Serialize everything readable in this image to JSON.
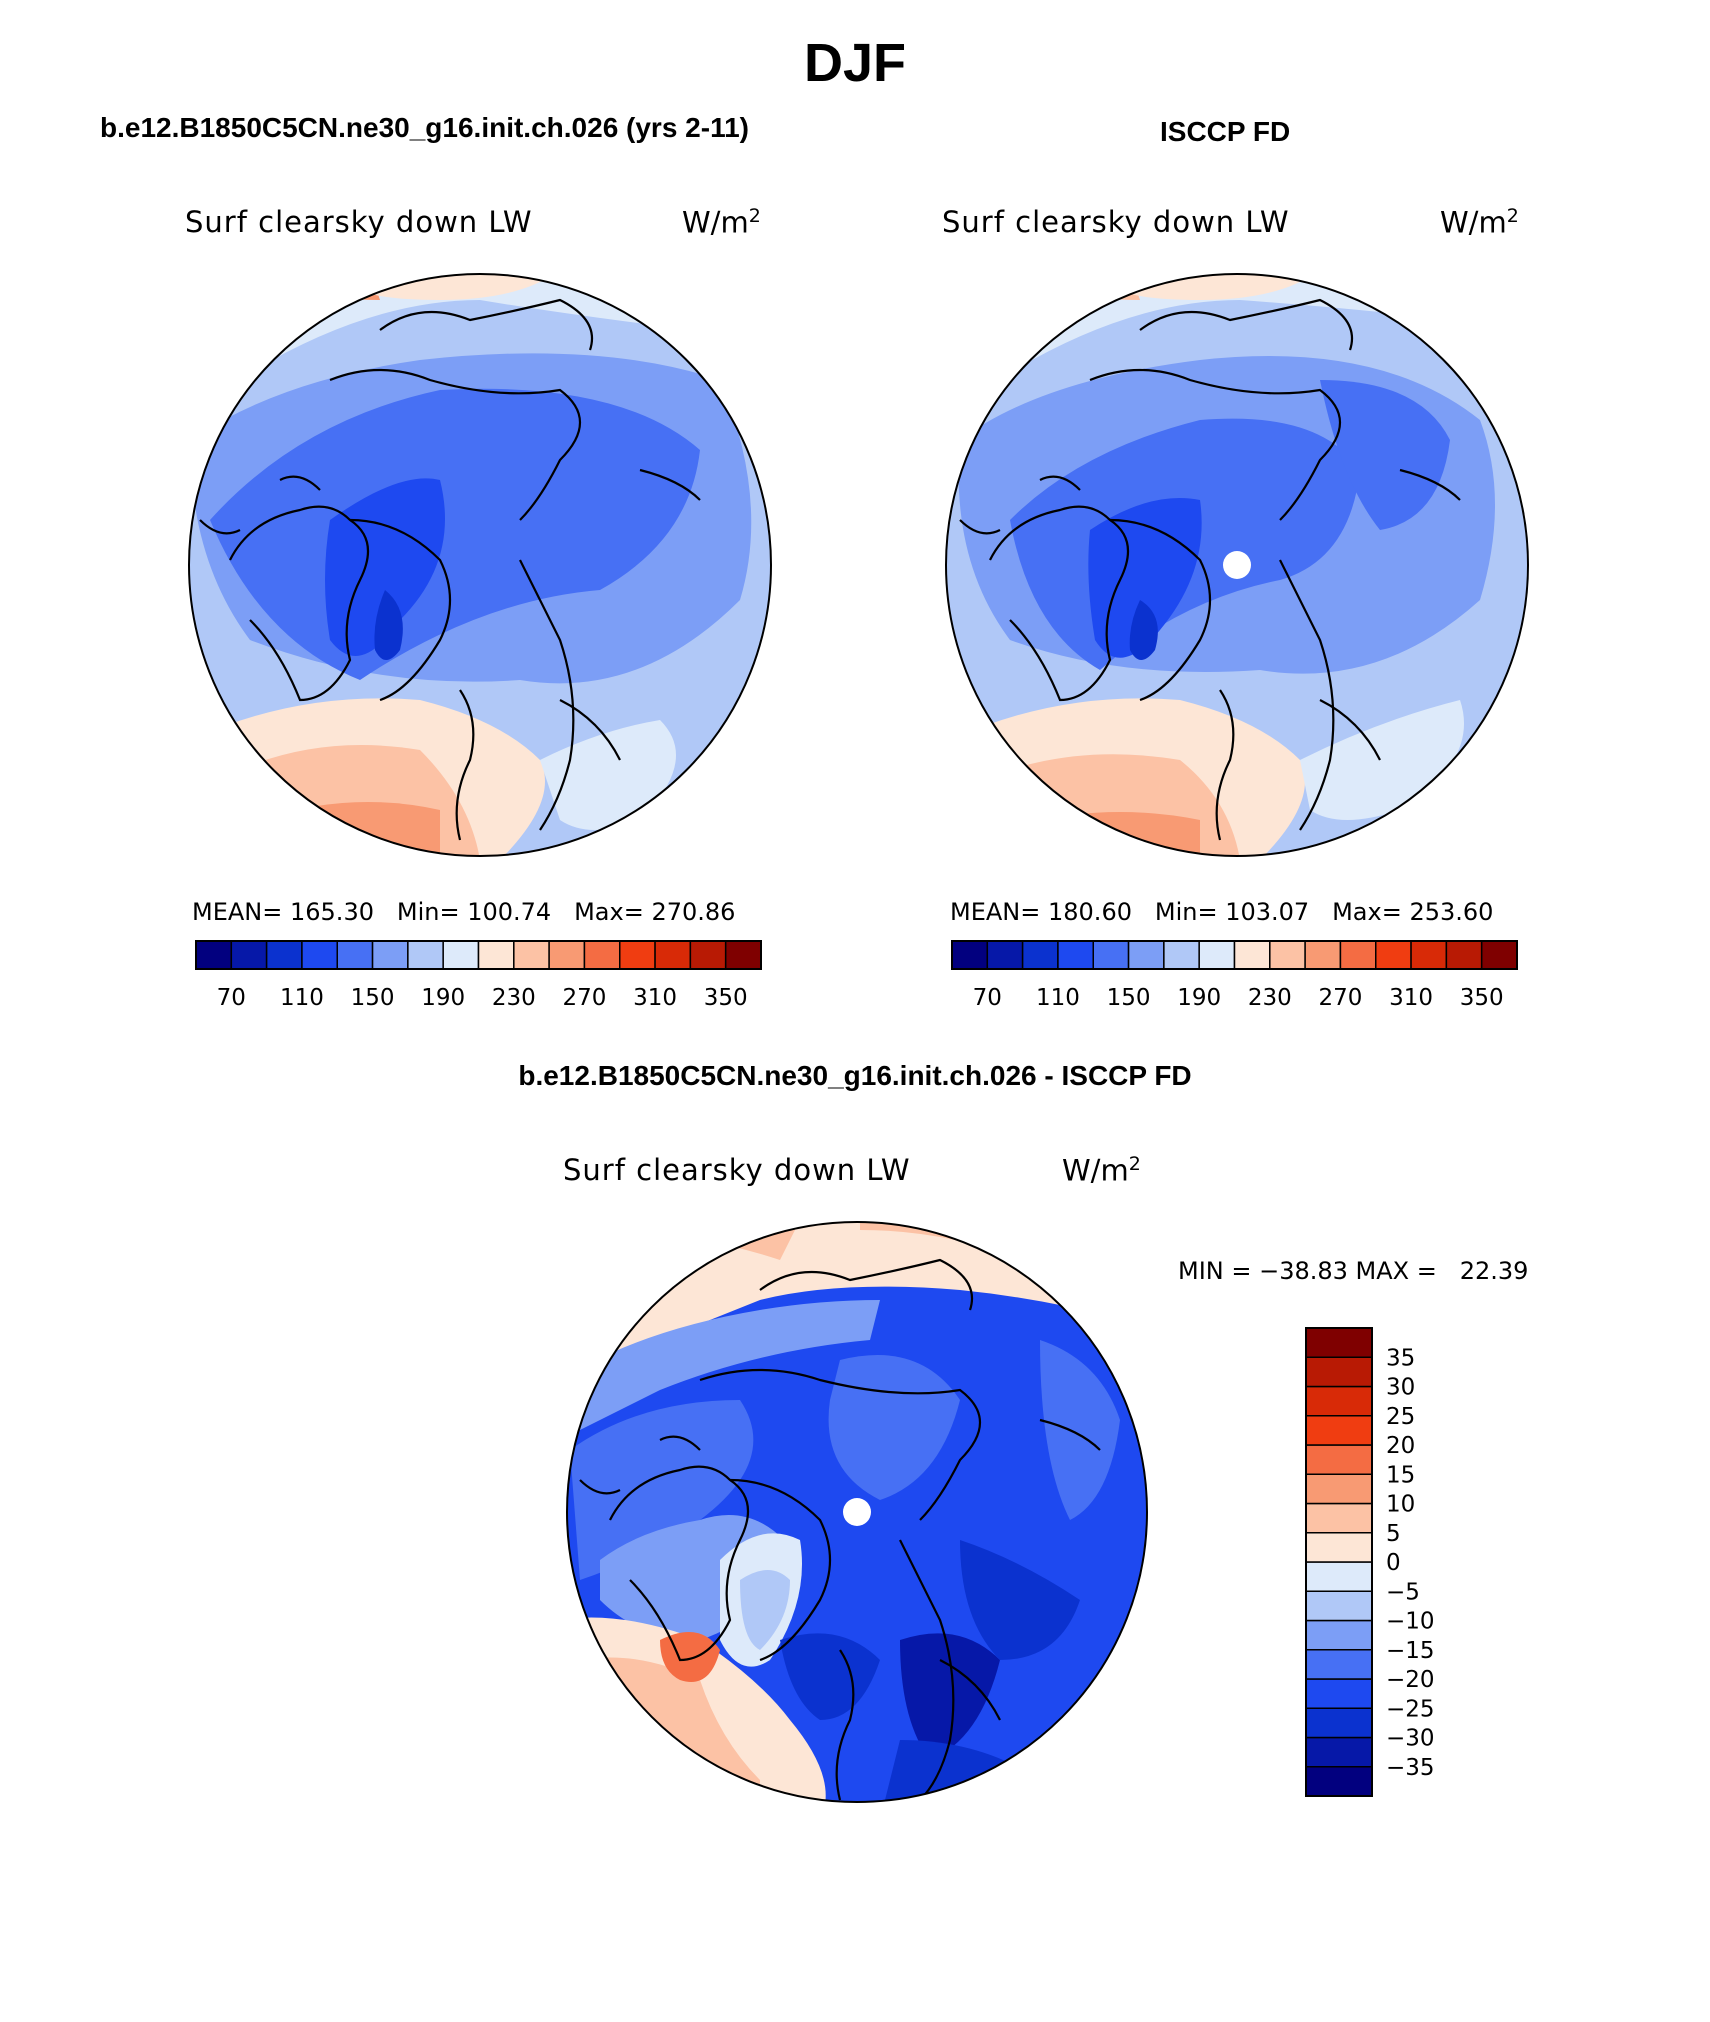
{
  "page": {
    "title": "DJF"
  },
  "panels": [
    {
      "heading": "b.e12.B1850C5CN.ne30_g16.init.ch.026 (yrs 2-11)",
      "variable": "Surf clearsky down LW",
      "units_base": "W/m",
      "units_exp": "2",
      "mean_label": "MEAN=",
      "mean_value": "165.30",
      "min_label": "Min=",
      "min_value": "100.74",
      "max_label": "Max=",
      "max_value": "270.86"
    },
    {
      "heading": "ISCCP FD",
      "variable": "Surf clearsky down LW",
      "units_base": "W/m",
      "units_exp": "2",
      "mean_label": "MEAN=",
      "mean_value": "180.60",
      "min_label": "Min=",
      "min_value": "103.07",
      "max_label": "Max=",
      "max_value": "253.60"
    }
  ],
  "difference": {
    "heading": "b.e12.B1850C5CN.ne30_g16.init.ch.026 - ISCCP FD",
    "variable": "Surf clearsky down LW",
    "units_base": "W/m",
    "units_exp": "2",
    "minmax_text": "MIN = −38.83 MAX =   22.39"
  },
  "colorbar_abs": {
    "colors": [
      "#02007f",
      "#0618a8",
      "#0b32cf",
      "#1e49f0",
      "#4770f4",
      "#7c9ef6",
      "#b0c8f7",
      "#ddeafa",
      "#fde6d6",
      "#fcc2a5",
      "#f89a73",
      "#f46c43",
      "#f03d11",
      "#d82a07",
      "#b81a04",
      "#7f0000"
    ],
    "labels": [
      "70",
      "110",
      "150",
      "190",
      "230",
      "270",
      "310",
      "350"
    ]
  },
  "colorbar_diff": {
    "colors": [
      "#02007f",
      "#0618a8",
      "#0b32cf",
      "#1e49f0",
      "#4770f4",
      "#7c9ef6",
      "#b0c8f7",
      "#ddeafa",
      "#fde6d6",
      "#fcc2a5",
      "#f89a73",
      "#f46c43",
      "#f03d11",
      "#d82a07",
      "#b81a04",
      "#7f0000"
    ],
    "labels": [
      "35",
      "30",
      "25",
      "20",
      "15",
      "10",
      "5",
      "0",
      "−5",
      "−10",
      "−15",
      "−20",
      "−25",
      "−30",
      "−35"
    ]
  }
}
